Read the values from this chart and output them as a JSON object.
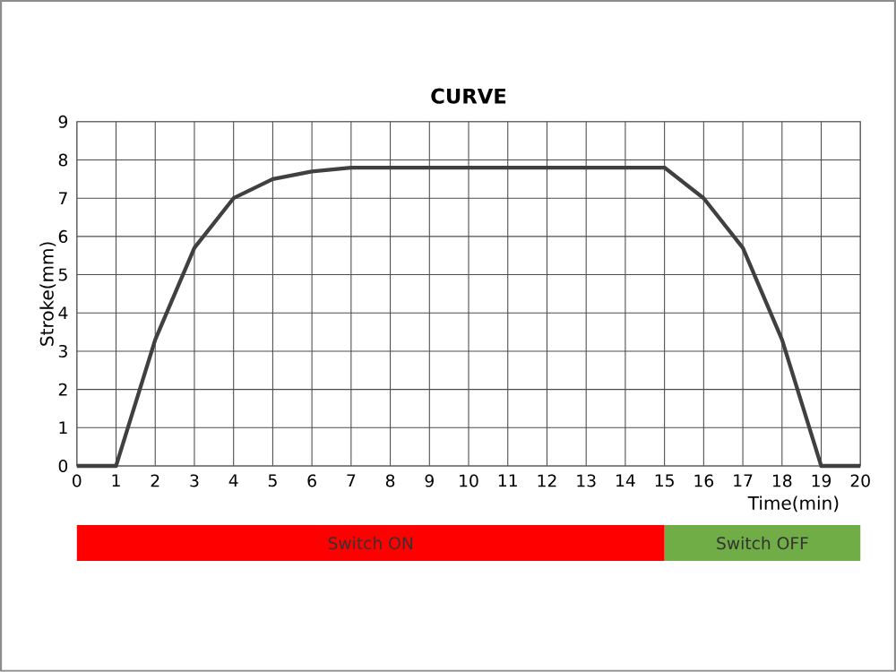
{
  "chart_data": [
    {
      "type": "line",
      "title": "CURVE",
      "xlabel": "Time(min)",
      "ylabel": "Stroke(mm)",
      "x": [
        0,
        1,
        2,
        3,
        4,
        5,
        6,
        7,
        8,
        9,
        10,
        11,
        12,
        13,
        14,
        15,
        16,
        17,
        18,
        19,
        20
      ],
      "series": [
        {
          "color": "#404040",
          "values": [
            0,
            0,
            3.3,
            5.7,
            7,
            7.5,
            7.7,
            7.8,
            7.8,
            7.8,
            7.8,
            7.8,
            7.8,
            7.8,
            7.8,
            7.8,
            7,
            5.7,
            3.3,
            0,
            0
          ]
        }
      ],
      "xlim": [
        0,
        20
      ],
      "ylim": [
        0,
        9
      ],
      "xticks": [
        0,
        1,
        2,
        3,
        4,
        5,
        6,
        7,
        8,
        9,
        10,
        11,
        12,
        13,
        14,
        15,
        16,
        17,
        18,
        19,
        20
      ],
      "yticks": [
        0,
        1,
        2,
        3,
        4,
        5,
        6,
        7,
        8,
        9
      ],
      "grid": true,
      "marker": "none",
      "line_style": "solid"
    },
    {
      "type": "bar",
      "orientation": "horizontal",
      "stacked": true,
      "categories": [
        null
      ],
      "xlim": [
        0,
        20
      ],
      "tick_labels": false,
      "series": [
        {
          "name": "Switch ON",
          "color": "#ff0000",
          "values": [
            15
          ]
        },
        {
          "name": "Switch OFF",
          "color": "#70ad47",
          "values": [
            5
          ]
        }
      ]
    }
  ]
}
